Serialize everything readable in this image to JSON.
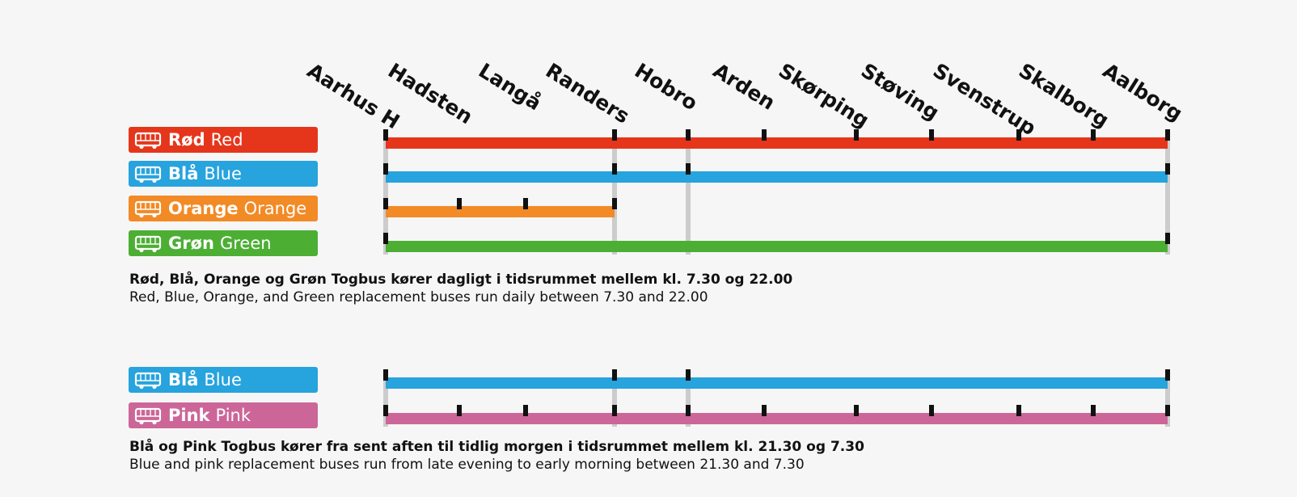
{
  "stations": [
    "Aarhus H",
    "Hadsten",
    "Langå",
    "Randers",
    "Hobro",
    "Arden",
    "Skørping",
    "Støving",
    "Svenstrup",
    "Skalborg",
    "Aalborg"
  ],
  "colors": {
    "red": "#e5361b",
    "blue": "#27a3dd",
    "orange": "#f28a25",
    "green": "#4caf34",
    "pink": "#cc6699",
    "connector": "#cccccc",
    "tick": "#111111"
  },
  "groups": [
    {
      "lines": [
        {
          "id": "red",
          "name_da": "Rød",
          "name_en": "Red",
          "color": "#e5361b",
          "from": 1,
          "to": 10,
          "stops": [
            1,
            3,
            4,
            5,
            6,
            7,
            8,
            9,
            10
          ]
        },
        {
          "id": "blue",
          "name_da": "Blå",
          "name_en": "Blue",
          "color": "#27a3dd",
          "from": 1,
          "to": 10,
          "stops": [
            1,
            3,
            4,
            10
          ]
        },
        {
          "id": "orange",
          "name_da": "Orange",
          "name_en": "Orange",
          "color": "#f28a25",
          "from": 1,
          "to": 3,
          "stops": [
            1,
            2,
            2.9,
            3
          ]
        },
        {
          "id": "green",
          "name_da": "Grøn",
          "name_en": "Green",
          "color": "#4caf34",
          "from": 1,
          "to": 10,
          "stops": [
            1,
            10
          ]
        }
      ],
      "connectors": [
        1,
        3,
        4,
        10
      ],
      "caption_da": "Rød, Blå, Orange og Grøn Togbus kører dagligt i tidsrummet mellem kl. 7.30 og 22.00",
      "caption_en": "Red, Blue, Orange, and Green replacement buses run daily between 7.30 and 22.00"
    },
    {
      "lines": [
        {
          "id": "blue-night",
          "name_da": "Blå",
          "name_en": "Blue",
          "color": "#27a3dd",
          "from": 1,
          "to": 10,
          "stops": [
            1,
            3,
            4,
            10
          ]
        },
        {
          "id": "pink",
          "name_da": "Pink",
          "name_en": "Pink",
          "color": "#cc6699",
          "from": 1,
          "to": 10,
          "stops": [
            1,
            2,
            2.9,
            3,
            4,
            5,
            6,
            7,
            8,
            9,
            10
          ]
        }
      ],
      "connectors": [
        1,
        3,
        4,
        10
      ],
      "caption_da": "Blå og Pink Togbus kører fra sent aften til tidlig morgen i tidsrummet mellem kl. 21.30 og 7.30",
      "caption_en": "Blue and pink replacement buses run from late evening to early morning between 21.30 and 7.30"
    }
  ]
}
